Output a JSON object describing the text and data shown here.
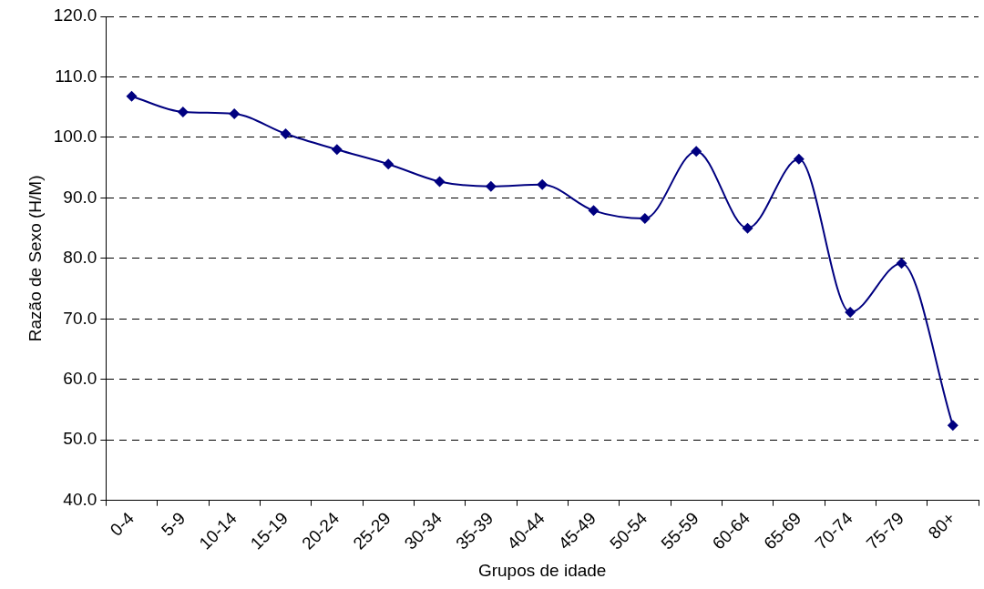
{
  "chart_data": {
    "type": "line",
    "xlabel": "Grupos de idade",
    "ylabel": "Razão de Sexo (H/M)",
    "categories": [
      "0-4",
      "5-9",
      "10-14",
      "15-19",
      "20-24",
      "25-29",
      "30-34",
      "35-39",
      "40-44",
      "45-49",
      "50-54",
      "55-59",
      "60-64",
      "65-69",
      "70-74",
      "75-79",
      "80+"
    ],
    "series": [
      {
        "color": "#000080",
        "values": [
          106.8,
          104.2,
          103.9,
          100.6,
          98.0,
          95.6,
          92.7,
          91.9,
          92.2,
          87.9,
          86.6,
          97.7,
          85.0,
          96.4,
          71.1,
          79.2,
          52.4
        ]
      }
    ],
    "ylim": [
      40,
      120
    ],
    "yticks": [
      {
        "value": 40,
        "label": "40.0"
      },
      {
        "value": 50,
        "label": "50.0"
      },
      {
        "value": 60,
        "label": "60.0"
      },
      {
        "value": 70,
        "label": "70.0"
      },
      {
        "value": 80,
        "label": "80.0"
      },
      {
        "value": 90,
        "label": "90.0"
      },
      {
        "value": 100,
        "label": "100.0"
      },
      {
        "value": 110,
        "label": "110.0"
      },
      {
        "value": 120,
        "label": "120.0"
      }
    ],
    "grid": "y",
    "legend": false,
    "marker": "diamond",
    "line_style": "solid"
  }
}
